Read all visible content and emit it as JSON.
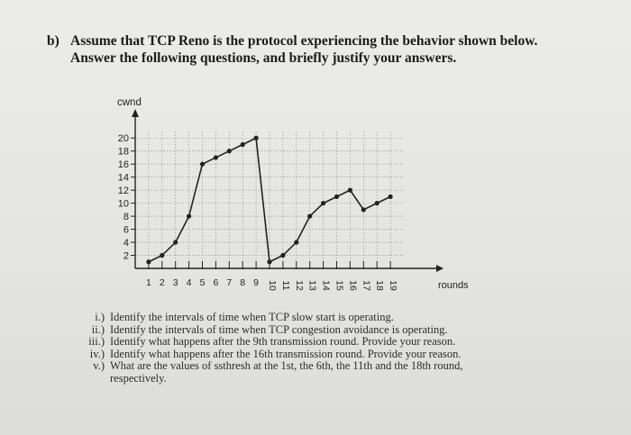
{
  "question": {
    "label": "b)",
    "line1": "Assume that TCP Reno is the protocol experiencing the behavior shown below.",
    "line2": "Answer the following questions, and briefly justify your answers."
  },
  "chart_data": {
    "type": "line",
    "ylabel": "cwnd",
    "xlabel": "rounds",
    "y_ticks": [
      2,
      4,
      6,
      8,
      10,
      12,
      14,
      16,
      18,
      20
    ],
    "x_ticks": [
      1,
      2,
      3,
      4,
      5,
      6,
      7,
      8,
      9,
      10,
      11,
      12,
      13,
      14,
      15,
      16,
      17,
      18,
      19
    ],
    "ylim": [
      0,
      21
    ],
    "xlim": [
      0,
      20
    ],
    "grid": true,
    "x": [
      1,
      2,
      3,
      4,
      5,
      6,
      7,
      8,
      9,
      10,
      11,
      12,
      13,
      14,
      15,
      16,
      17,
      18,
      19
    ],
    "values": [
      1,
      2,
      4,
      8,
      16,
      17,
      18,
      19,
      20,
      1,
      2,
      4,
      8,
      10,
      11,
      12,
      9,
      10,
      11
    ],
    "color": "#222222"
  },
  "questions": [
    {
      "num": "i.)",
      "text": "Identify the intervals of time when TCP slow start is operating."
    },
    {
      "num": "ii.)",
      "text": "Identify the intervals of time when TCP congestion avoidance is operating."
    },
    {
      "num": "iii.)",
      "text": "Identify what happens after the 9th transmission round. Provide your reason."
    },
    {
      "num": "iv.)",
      "text": "Identify what happens after the 16th transmission round. Provide your reason."
    },
    {
      "num": "v.)",
      "text": "What are the values of ssthresh at the 1st, the 6th, the 11th and the 18th round,",
      "cont": "respectively."
    }
  ]
}
